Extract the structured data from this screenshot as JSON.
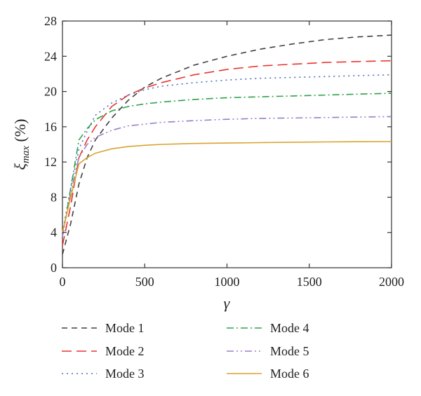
{
  "chart_data": {
    "type": "line",
    "title": "",
    "xlabel": "γ",
    "ylabel": "ξ",
    "ylabel_subscript": "max",
    "ylabel_unit": " (%)",
    "xlim": [
      0,
      2000
    ],
    "ylim": [
      0,
      28
    ],
    "xticks": [
      0,
      500,
      1000,
      1500,
      2000
    ],
    "yticks": [
      0,
      4,
      8,
      12,
      16,
      20,
      24,
      28
    ],
    "grid": false,
    "legend_position": "bottom",
    "series": [
      {
        "name": "Mode 1",
        "color": "#404040",
        "dash": "8,6",
        "x": [
          0,
          50,
          100,
          150,
          200,
          300,
          400,
          500,
          600,
          800,
          1000,
          1200,
          1400,
          1600,
          1800,
          2000
        ],
        "y": [
          1.5,
          5.0,
          9.5,
          12.5,
          14.5,
          17.0,
          19.0,
          20.5,
          21.5,
          23.0,
          24.0,
          24.8,
          25.4,
          25.9,
          26.2,
          26.4
        ]
      },
      {
        "name": "Mode 2",
        "color": "#e8352c",
        "dash": "14,7",
        "x": [
          0,
          50,
          100,
          150,
          200,
          300,
          400,
          500,
          600,
          800,
          1000,
          1200,
          1400,
          1600,
          1800,
          2000
        ],
        "y": [
          2.5,
          7.0,
          12.5,
          14.5,
          16.0,
          18.3,
          19.6,
          20.4,
          21.0,
          21.9,
          22.5,
          22.9,
          23.1,
          23.3,
          23.4,
          23.5
        ]
      },
      {
        "name": "Mode 3",
        "color": "#4a6fc2",
        "dash": "2,5",
        "x": [
          0,
          50,
          100,
          150,
          200,
          300,
          400,
          500,
          600,
          800,
          1000,
          1200,
          1400,
          1600,
          1800,
          2000
        ],
        "y": [
          4.0,
          9.0,
          13.5,
          15.5,
          17.3,
          18.7,
          19.6,
          20.2,
          20.6,
          21.0,
          21.3,
          21.5,
          21.6,
          21.7,
          21.8,
          21.9
        ]
      },
      {
        "name": "Mode 4",
        "color": "#2ea24b",
        "dash": "10,4,2,4",
        "x": [
          0,
          50,
          100,
          150,
          200,
          300,
          400,
          500,
          600,
          800,
          1000,
          1200,
          1400,
          1600,
          1800,
          2000
        ],
        "y": [
          3.5,
          9.0,
          14.5,
          15.8,
          16.8,
          17.8,
          18.3,
          18.6,
          18.8,
          19.1,
          19.3,
          19.4,
          19.5,
          19.6,
          19.7,
          19.8
        ]
      },
      {
        "name": "Mode 5",
        "color": "#9a7ec6",
        "dash": "10,4,2,4,2,4",
        "x": [
          0,
          50,
          100,
          150,
          200,
          300,
          400,
          500,
          600,
          800,
          1000,
          1200,
          1400,
          1600,
          1800,
          2000
        ],
        "y": [
          3.5,
          8.5,
          12.5,
          14.0,
          14.8,
          15.6,
          16.1,
          16.3,
          16.5,
          16.7,
          16.85,
          16.95,
          17.0,
          17.05,
          17.1,
          17.15
        ]
      },
      {
        "name": "Mode 6",
        "color": "#d9a32e",
        "dash": "",
        "x": [
          0,
          50,
          100,
          150,
          200,
          300,
          400,
          500,
          600,
          800,
          1000,
          1200,
          1400,
          1600,
          1800,
          2000
        ],
        "y": [
          4.0,
          8.0,
          11.8,
          12.5,
          13.0,
          13.5,
          13.75,
          13.9,
          14.0,
          14.1,
          14.15,
          14.2,
          14.25,
          14.28,
          14.3,
          14.32
        ]
      }
    ]
  }
}
